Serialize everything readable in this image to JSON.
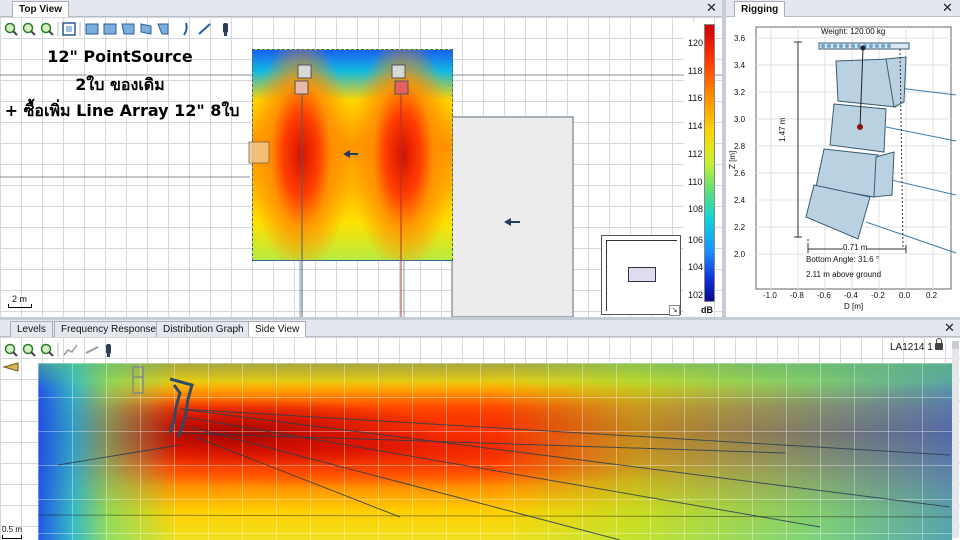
{
  "top_view": {
    "tab": "Top View",
    "scale_label": "2 m",
    "overlay": {
      "line1": "12\" PointSource",
      "line2": "2ใบ ของเดิม",
      "line3": "+ ซื้อเพิ่ม Line Array 12\" 8ใบ"
    },
    "toolbar_icons": [
      "zoom-in-icon",
      "zoom-out-icon",
      "zoom-fit-icon",
      "select-area-icon",
      "box-icon",
      "box-side-icon",
      "box-front-icon",
      "box-tilt-icon",
      "curve-icon",
      "line-icon",
      "speaker-icon"
    ]
  },
  "colorbar": {
    "ticks": [
      "120",
      "118",
      "116",
      "114",
      "112",
      "110",
      "108",
      "106",
      "104",
      "102"
    ],
    "unit": "dB",
    "colors": [
      "#cc0000",
      "#ff3300",
      "#ff8800",
      "#ffd400",
      "#c8f032",
      "#5ce07a",
      "#10d4d4",
      "#1890ff",
      "#1030d8",
      "#0a0a8c"
    ]
  },
  "rigging": {
    "tab": "Rigging",
    "weight": "Weight: 120.00 kg",
    "height_label": "1.47 m",
    "width_label": "0.71 m",
    "bottom_angle": "Bottom Angle: 31.6 °",
    "above_ground": "2.11 m above ground",
    "y_axis_label": "Z [m]",
    "x_axis_label": "D [m]",
    "y_ticks": [
      "3.6",
      "3.4",
      "3.2",
      "3.0",
      "2.8",
      "2.6",
      "2.4",
      "2.2",
      "2.0"
    ],
    "x_ticks": [
      "-1.0",
      "-0.8",
      "-0.6",
      "-0.4",
      "-0.2",
      "0.0",
      "0.2"
    ]
  },
  "bottom_panel": {
    "tabs": [
      "Levels",
      "Frequency Response",
      "Distribution Graph",
      "Side View"
    ],
    "active_tab": "Side View",
    "selector": "LA1214 1",
    "scale_label": "0.5 m"
  }
}
